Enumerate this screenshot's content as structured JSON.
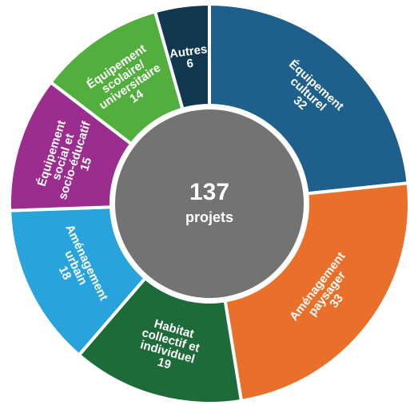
{
  "chart_data": {
    "type": "pie",
    "center": {
      "total": "137",
      "unit": "projets"
    },
    "slices": [
      {
        "label": [
          "Équipement",
          "culturel"
        ],
        "value": 32,
        "color": "#1f5f8b"
      },
      {
        "label": [
          "Aménagement",
          "paysager"
        ],
        "value": 33,
        "color": "#e8702a"
      },
      {
        "label": [
          "Habitat",
          "collectif et",
          "individuel"
        ],
        "value": 19,
        "color": "#1e6b3a"
      },
      {
        "label": [
          "Aménagement",
          "urbain"
        ],
        "value": 18,
        "color": "#29a3dc"
      },
      {
        "label": [
          "Équipement",
          "social et",
          "socio-éducatif"
        ],
        "value": 15,
        "color": "#9b2d8f"
      },
      {
        "label": [
          "Équipement",
          "scolaire/",
          "universitaire"
        ],
        "value": 14,
        "color": "#52ae3d"
      },
      {
        "label": [
          "Autres"
        ],
        "value": 6,
        "color": "#12384f"
      }
    ]
  }
}
